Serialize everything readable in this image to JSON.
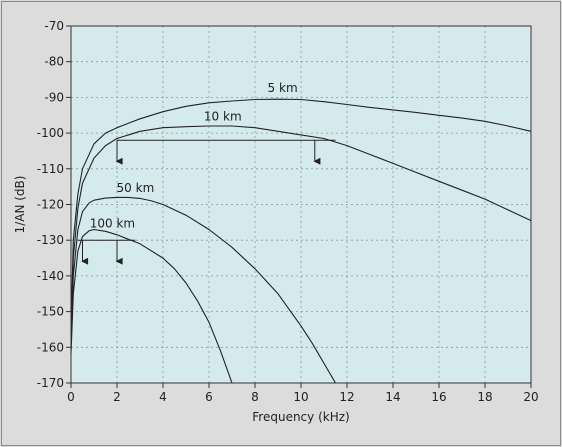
{
  "chart_data": {
    "type": "line",
    "xlabel": "Frequency (kHz)",
    "ylabel": "1/AN (dB)",
    "xlim": [
      0,
      20
    ],
    "ylim": [
      -170,
      -70
    ],
    "x_ticks": [
      "0",
      "2",
      "4",
      "6",
      "8",
      "10",
      "12",
      "14",
      "16",
      "18",
      "20"
    ],
    "y_ticks": [
      "-70",
      "-80",
      "-90",
      "-100",
      "-110",
      "-120",
      "-130",
      "-140",
      "-150",
      "-160",
      "-170"
    ],
    "grid": "dashed vertical and horizontal",
    "plot_background": "#d5eaec",
    "series": [
      {
        "name": "5 km",
        "label_at": [
          9.2,
          -88.5
        ],
        "points": [
          [
            0,
            -155
          ],
          [
            0.1,
            -130
          ],
          [
            0.3,
            -117
          ],
          [
            0.5,
            -110
          ],
          [
            1,
            -103
          ],
          [
            1.5,
            -100
          ],
          [
            2,
            -98.5
          ],
          [
            3,
            -96
          ],
          [
            4,
            -94
          ],
          [
            5,
            -92.5
          ],
          [
            6,
            -91.5
          ],
          [
            7,
            -91
          ],
          [
            8,
            -90.6
          ],
          [
            9,
            -90.5
          ],
          [
            10,
            -90.6
          ],
          [
            11,
            -91.2
          ],
          [
            12,
            -92
          ],
          [
            13,
            -92.8
          ],
          [
            14,
            -93.5
          ],
          [
            15,
            -94.2
          ],
          [
            16,
            -95
          ],
          [
            17,
            -95.8
          ],
          [
            18,
            -96.7
          ],
          [
            19,
            -98
          ],
          [
            20,
            -99.5
          ]
        ]
      },
      {
        "name": "10 km",
        "label_at": [
          6.6,
          -96.5
        ],
        "points": [
          [
            0,
            -158
          ],
          [
            0.1,
            -135
          ],
          [
            0.3,
            -121
          ],
          [
            0.5,
            -114
          ],
          [
            1,
            -107
          ],
          [
            1.5,
            -103.5
          ],
          [
            2,
            -101.5
          ],
          [
            3,
            -99.5
          ],
          [
            4,
            -98.5
          ],
          [
            5,
            -98.2
          ],
          [
            6,
            -98
          ],
          [
            7,
            -98
          ],
          [
            8,
            -98.5
          ],
          [
            9,
            -99.5
          ],
          [
            10,
            -100.5
          ],
          [
            11,
            -101.5
          ],
          [
            12,
            -103.5
          ],
          [
            13,
            -106
          ],
          [
            14,
            -108.5
          ],
          [
            15,
            -111
          ],
          [
            16,
            -113.5
          ],
          [
            17,
            -116
          ],
          [
            18,
            -118.5
          ],
          [
            19,
            -121.5
          ],
          [
            20,
            -124.5
          ]
        ]
      },
      {
        "name": "50 km",
        "label_at": [
          2.8,
          -116.5
        ],
        "points": [
          [
            0,
            -160
          ],
          [
            0.1,
            -140
          ],
          [
            0.3,
            -127
          ],
          [
            0.5,
            -122
          ],
          [
            0.8,
            -119.5
          ],
          [
            1,
            -118.8
          ],
          [
            1.5,
            -118.2
          ],
          [
            2,
            -118
          ],
          [
            2.5,
            -118
          ],
          [
            3,
            -118.3
          ],
          [
            3.5,
            -119
          ],
          [
            4,
            -120
          ],
          [
            5,
            -123
          ],
          [
            6,
            -127
          ],
          [
            7,
            -132
          ],
          [
            8,
            -138
          ],
          [
            9,
            -145
          ],
          [
            10,
            -154
          ],
          [
            10.5,
            -159
          ],
          [
            11,
            -164.5
          ],
          [
            11.5,
            -170
          ]
        ]
      },
      {
        "name": "100 km",
        "label_at": [
          1.8,
          -126.5
        ],
        "points": [
          [
            0,
            -162
          ],
          [
            0.1,
            -145
          ],
          [
            0.3,
            -133
          ],
          [
            0.5,
            -129
          ],
          [
            0.8,
            -127.3
          ],
          [
            1,
            -127
          ],
          [
            1.5,
            -127.5
          ],
          [
            2,
            -128.5
          ],
          [
            3,
            -131
          ],
          [
            4,
            -135
          ],
          [
            4.5,
            -138
          ],
          [
            5,
            -142
          ],
          [
            5.5,
            -147
          ],
          [
            6,
            -153
          ],
          [
            6.5,
            -161
          ],
          [
            7,
            -170
          ]
        ]
      }
    ],
    "annotations": [
      {
        "type": "bracket",
        "y": -102,
        "x_from": 2,
        "x_to": 11.5,
        "drops": [
          2,
          10.6
        ]
      },
      {
        "type": "bracket",
        "y": -130,
        "x_from": 0.3,
        "x_to": 2.8,
        "drops": [
          0.5,
          2
        ]
      }
    ]
  }
}
